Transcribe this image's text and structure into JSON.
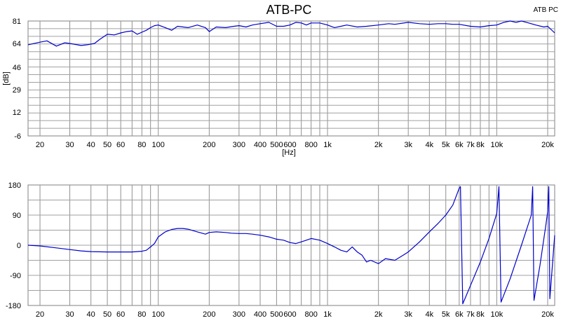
{
  "title": "ATB-PC",
  "corner_label": "ATB PC",
  "chart_data": [
    {
      "type": "line",
      "name": "magnitude",
      "xscale": "log",
      "xlim": [
        17,
        22000
      ],
      "ylim": [
        -6,
        81
      ],
      "ylabel": "[dB]",
      "xlabel": "[Hz]",
      "grid": true,
      "y_ticks": [
        81,
        64,
        46,
        29,
        12,
        -6
      ],
      "x_ticks": [
        {
          "v": 20,
          "l": "20"
        },
        {
          "v": 30,
          "l": "30"
        },
        {
          "v": 40,
          "l": "40"
        },
        {
          "v": 50,
          "l": "50"
        },
        {
          "v": 60,
          "l": "60"
        },
        {
          "v": 80,
          "l": "80"
        },
        {
          "v": 100,
          "l": "100"
        },
        {
          "v": 200,
          "l": "200"
        },
        {
          "v": 300,
          "l": "300"
        },
        {
          "v": 400,
          "l": "400"
        },
        {
          "v": 500,
          "l": "500"
        },
        {
          "v": 600,
          "l": "600"
        },
        {
          "v": 800,
          "l": "800"
        },
        {
          "v": 1000,
          "l": "1k"
        },
        {
          "v": 2000,
          "l": "2k"
        },
        {
          "v": 3000,
          "l": "3k"
        },
        {
          "v": 4000,
          "l": "4k"
        },
        {
          "v": 5000,
          "l": "5k"
        },
        {
          "v": 6000,
          "l": "6k"
        },
        {
          "v": 7000,
          "l": "7k"
        },
        {
          "v": 8000,
          "l": "8k"
        },
        {
          "v": 10000,
          "l": "10k"
        },
        {
          "v": 20000,
          "l": "20k"
        }
      ],
      "series": [
        {
          "color": "#0000cc",
          "x": [
            17,
            20,
            22,
            25,
            28,
            30,
            35,
            38,
            42,
            45,
            50,
            55,
            60,
            65,
            70,
            75,
            80,
            85,
            90,
            95,
            100,
            110,
            120,
            130,
            140,
            150,
            170,
            190,
            200,
            220,
            250,
            280,
            300,
            330,
            360,
            400,
            450,
            500,
            550,
            600,
            650,
            700,
            750,
            800,
            900,
            1000,
            1100,
            1200,
            1300,
            1500,
            1700,
            2000,
            2300,
            2500,
            3000,
            3500,
            4000,
            4500,
            5000,
            5500,
            6000,
            7000,
            8000,
            9000,
            10000,
            11000,
            12000,
            13000,
            14000,
            15000,
            17000,
            19000,
            20000,
            22000
          ],
          "y": [
            63,
            65,
            66,
            62,
            64.5,
            64,
            62.5,
            63,
            64,
            67,
            71,
            70.5,
            72,
            73,
            73.5,
            71,
            72.5,
            74,
            76,
            77.5,
            78,
            76,
            74,
            77,
            76.5,
            76,
            78,
            76,
            73,
            76.5,
            76,
            77,
            77.5,
            76.5,
            78,
            79,
            80,
            77,
            77,
            78,
            80,
            79.5,
            78,
            79.5,
            79.5,
            78,
            76,
            77,
            78,
            76.5,
            77,
            78,
            79,
            78.5,
            80,
            79,
            78.5,
            79,
            79,
            78.5,
            78.5,
            77,
            76.5,
            77.5,
            78,
            80,
            81,
            80,
            81,
            80,
            78,
            76.5,
            77,
            72
          ]
        }
      ]
    },
    {
      "type": "line",
      "name": "phase",
      "xscale": "log",
      "xlim": [
        17,
        22000
      ],
      "ylim": [
        -180,
        180
      ],
      "grid": true,
      "y_ticks": [
        180,
        90,
        0,
        -90,
        -180
      ],
      "x_ticks": [
        {
          "v": 20,
          "l": "20"
        },
        {
          "v": 30,
          "l": "30"
        },
        {
          "v": 40,
          "l": "40"
        },
        {
          "v": 50,
          "l": "50"
        },
        {
          "v": 60,
          "l": "60"
        },
        {
          "v": 80,
          "l": "80"
        },
        {
          "v": 100,
          "l": "100"
        },
        {
          "v": 200,
          "l": "200"
        },
        {
          "v": 300,
          "l": "300"
        },
        {
          "v": 400,
          "l": "400"
        },
        {
          "v": 500,
          "l": "500"
        },
        {
          "v": 600,
          "l": "600"
        },
        {
          "v": 800,
          "l": "800"
        },
        {
          "v": 1000,
          "l": "1k"
        },
        {
          "v": 2000,
          "l": "2k"
        },
        {
          "v": 3000,
          "l": "3k"
        },
        {
          "v": 4000,
          "l": "4k"
        },
        {
          "v": 5000,
          "l": "5k"
        },
        {
          "v": 6000,
          "l": "6k"
        },
        {
          "v": 7000,
          "l": "7k"
        },
        {
          "v": 8000,
          "l": "8k"
        },
        {
          "v": 10000,
          "l": "10k"
        },
        {
          "v": 20000,
          "l": "20k"
        }
      ],
      "series": [
        {
          "color": "#0000cc",
          "x": [
            17,
            20,
            25,
            30,
            35,
            40,
            50,
            60,
            70,
            80,
            85,
            90,
            95,
            100,
            110,
            120,
            130,
            140,
            150,
            170,
            190,
            200,
            220,
            250,
            270,
            300,
            330,
            360,
            400,
            450,
            500,
            550,
            600,
            650,
            700,
            750,
            800,
            900,
            1000,
            1100,
            1200,
            1300,
            1400,
            1500,
            1600,
            1700,
            1800,
            2000,
            2200,
            2500,
            2800,
            3000,
            3500,
            4000,
            4500,
            5000,
            5500,
            6000,
            6100,
            6300,
            7000,
            8000,
            9000,
            10000,
            10300,
            10600,
            12000,
            14000,
            16000,
            16300,
            16600,
            18000,
            19500,
            20000,
            20300,
            20600,
            22000
          ],
          "y": [
            0,
            -2,
            -8,
            -13,
            -17,
            -19,
            -20,
            -20,
            -20,
            -18,
            -15,
            -5,
            5,
            25,
            40,
            47,
            50,
            50,
            48,
            40,
            33,
            38,
            40,
            38,
            36,
            35,
            35,
            33,
            30,
            25,
            18,
            15,
            8,
            5,
            10,
            15,
            20,
            15,
            5,
            -5,
            -15,
            -20,
            -5,
            -20,
            -30,
            -50,
            -45,
            -55,
            -40,
            -45,
            -30,
            -20,
            10,
            40,
            65,
            90,
            120,
            170,
            175,
            -175,
            -120,
            -50,
            20,
            95,
            175,
            -170,
            -100,
            0,
            90,
            175,
            -165,
            -60,
            60,
            100,
            175,
            -160,
            30
          ]
        }
      ]
    }
  ]
}
